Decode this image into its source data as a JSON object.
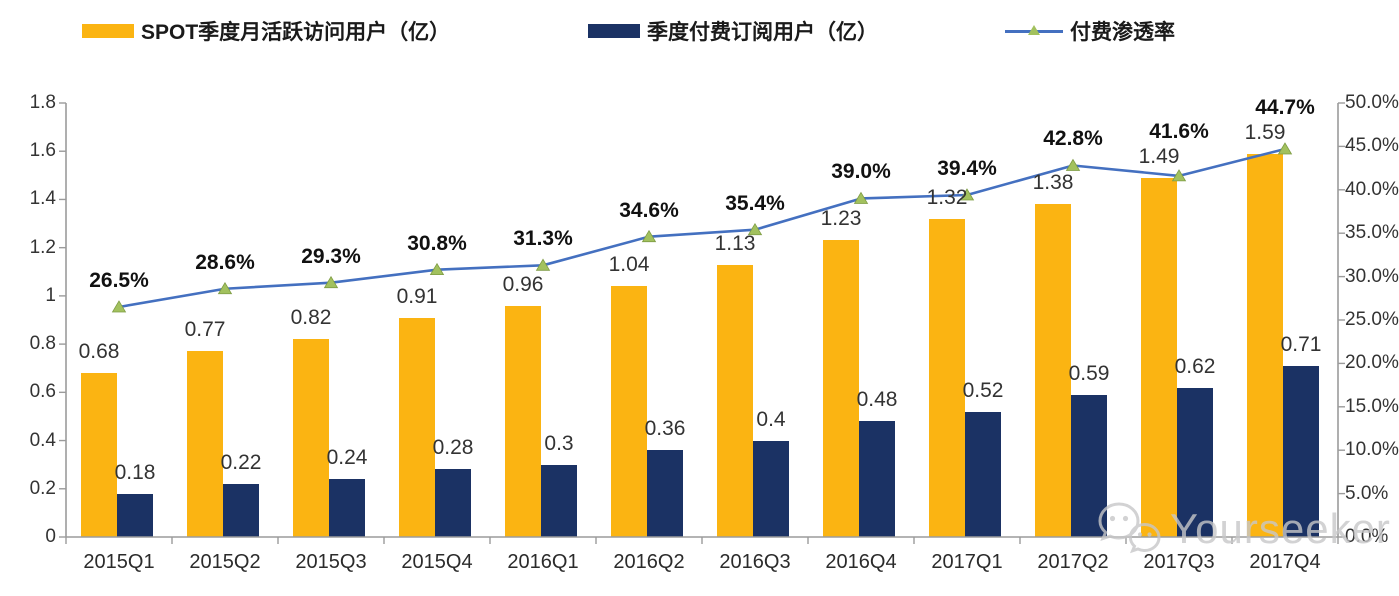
{
  "legend": [
    {
      "label": "SPOT季度月活跃访问用户（亿）",
      "type": "bar",
      "color": "#FBB412"
    },
    {
      "label": "季度付费订阅用户（亿）",
      "type": "bar",
      "color": "#1B3264"
    },
    {
      "label": "付费渗透率",
      "type": "line",
      "color": "#4470C0",
      "marker": "triangle",
      "marker_color": "#A2C15E"
    }
  ],
  "watermark": {
    "text": "Yourseeker",
    "icon": "wechat-icon",
    "color": "#c7c7c9"
  },
  "chart_data": {
    "type": "bar",
    "subtype": "combo-bar-line",
    "categories": [
      "2015Q1",
      "2015Q2",
      "2015Q3",
      "2015Q4",
      "2016Q1",
      "2016Q2",
      "2016Q3",
      "2016Q4",
      "2017Q1",
      "2017Q2",
      "2017Q3",
      "2017Q4"
    ],
    "series": [
      {
        "name": "SPOT季度月活跃访问用户（亿）",
        "type": "bar",
        "axis": "left",
        "color": "#FBB412",
        "values": [
          0.68,
          0.77,
          0.82,
          0.91,
          0.96,
          1.04,
          1.13,
          1.23,
          1.32,
          1.38,
          1.49,
          1.59
        ],
        "labels": [
          "0.68",
          "0.77",
          "0.82",
          "0.91",
          "0.96",
          "1.04",
          "1.13",
          "1.23",
          "1.32",
          "1.38",
          "1.49",
          "1.59"
        ]
      },
      {
        "name": "季度付费订阅用户（亿）",
        "type": "bar",
        "axis": "left",
        "color": "#1B3264",
        "values": [
          0.18,
          0.22,
          0.24,
          0.28,
          0.3,
          0.36,
          0.4,
          0.48,
          0.52,
          0.59,
          0.62,
          0.71
        ],
        "labels": [
          "0.18",
          "0.22",
          "0.24",
          "0.28",
          "0.3",
          "0.36",
          "0.4",
          "0.48",
          "0.52",
          "0.59",
          "0.62",
          "0.71"
        ]
      },
      {
        "name": "付费渗透率",
        "type": "line",
        "axis": "right",
        "color": "#4470C0",
        "marker_color": "#A2C15E",
        "values": [
          26.5,
          28.6,
          29.3,
          30.8,
          31.3,
          34.6,
          35.4,
          39.0,
          39.4,
          42.8,
          41.6,
          44.7
        ],
        "labels": [
          "26.5%",
          "28.6%",
          "29.3%",
          "30.8%",
          "31.3%",
          "34.6%",
          "35.4%",
          "39.0%",
          "39.4%",
          "42.8%",
          "41.6%",
          "44.7%"
        ]
      }
    ],
    "left_axis": {
      "min": 0,
      "max": 1.8,
      "step": 0.2,
      "ticks": [
        "1.8",
        "1.6",
        "1.4",
        "1.2",
        "1",
        "0.8",
        "0.6",
        "0.4",
        "0.2",
        "0"
      ]
    },
    "right_axis": {
      "min": 0,
      "max": 50,
      "step": 5,
      "ticks": [
        "50.0%",
        "45.0%",
        "40.0%",
        "35.0%",
        "30.0%",
        "25.0%",
        "20.0%",
        "15.0%",
        "10.0%",
        "5.0%",
        "0.0%"
      ]
    },
    "grid": false,
    "legend_position": "top",
    "title": ""
  }
}
